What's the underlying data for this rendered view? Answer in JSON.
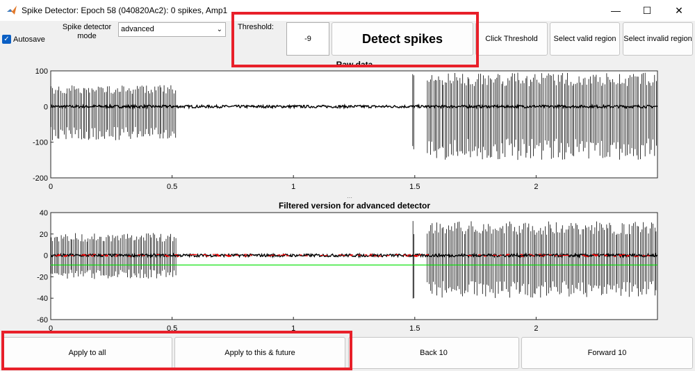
{
  "window": {
    "title": "Spike Detector: Epoch 58 (040820Ac2): 0 spikes, Amp1",
    "minimize_glyph": "—",
    "maximize_glyph": "☐",
    "close_glyph": "✕",
    "app_icon": "matlab-icon"
  },
  "toolbar": {
    "autosave_label": "Autosave",
    "autosave_checked": true,
    "mode_label": "Spike detector mode",
    "mode_value": "advanced",
    "threshold_label": "Threshold:",
    "threshold_value": "-9",
    "detect_label": "Detect spikes",
    "click_threshold_label": "Click Threshold",
    "select_valid_label": "Select valid region",
    "select_invalid_label": "Select invalid region"
  },
  "bottom": {
    "apply_all_label": "Apply to all",
    "apply_future_label": "Apply to this & future",
    "back_label": "Back 10",
    "forward_label": "Forward 10"
  },
  "colors": {
    "highlight": "#e8202a",
    "trace": "#000000",
    "threshold_line": "#00e000",
    "spike_markers": "#ff0000"
  },
  "chart_data": [
    {
      "type": "line",
      "title": "Raw data",
      "xlabel": "",
      "ylabel": "",
      "xlim": [
        0,
        2.5
      ],
      "ylim": [
        -200,
        100
      ],
      "x_ticks": [
        "0",
        "0.5",
        "1",
        "1.5",
        "2"
      ],
      "y_ticks": [
        "100",
        "0",
        "-100",
        "-200"
      ],
      "grid": false,
      "series": [
        {
          "spike_segments": [
            {
              "start": 0.0,
              "end": 0.52,
              "amplitude_up": 60,
              "amplitude_down": -95
            },
            {
              "start": 1.49,
              "end": 1.5,
              "amplitude_up": 95,
              "amplitude_down": -170
            },
            {
              "start": 1.55,
              "end": 2.5,
              "amplitude_up": 95,
              "amplitude_down": -150
            }
          ],
          "baseline": 0
        }
      ]
    },
    {
      "type": "line",
      "title": "Filtered version for advanced detector",
      "xlabel": "",
      "ylabel": "",
      "xlim": [
        0,
        2.5
      ],
      "ylim": [
        -60,
        40
      ],
      "x_ticks": [
        "0",
        "0.5",
        "1",
        "1.5",
        "2"
      ],
      "y_ticks": [
        "40",
        "20",
        "0",
        "-20",
        "-40",
        "-60"
      ],
      "grid": false,
      "threshold": -9,
      "series": [
        {
          "spike_segments": [
            {
              "start": 0.0,
              "end": 0.52,
              "amplitude_up": 21,
              "amplitude_down": -22
            },
            {
              "start": 1.49,
              "end": 1.5,
              "amplitude_up": 33,
              "amplitude_down": -41
            },
            {
              "start": 1.55,
              "end": 2.5,
              "amplitude_up": 32,
              "amplitude_down": -40
            }
          ],
          "baseline": 0
        }
      ]
    }
  ]
}
